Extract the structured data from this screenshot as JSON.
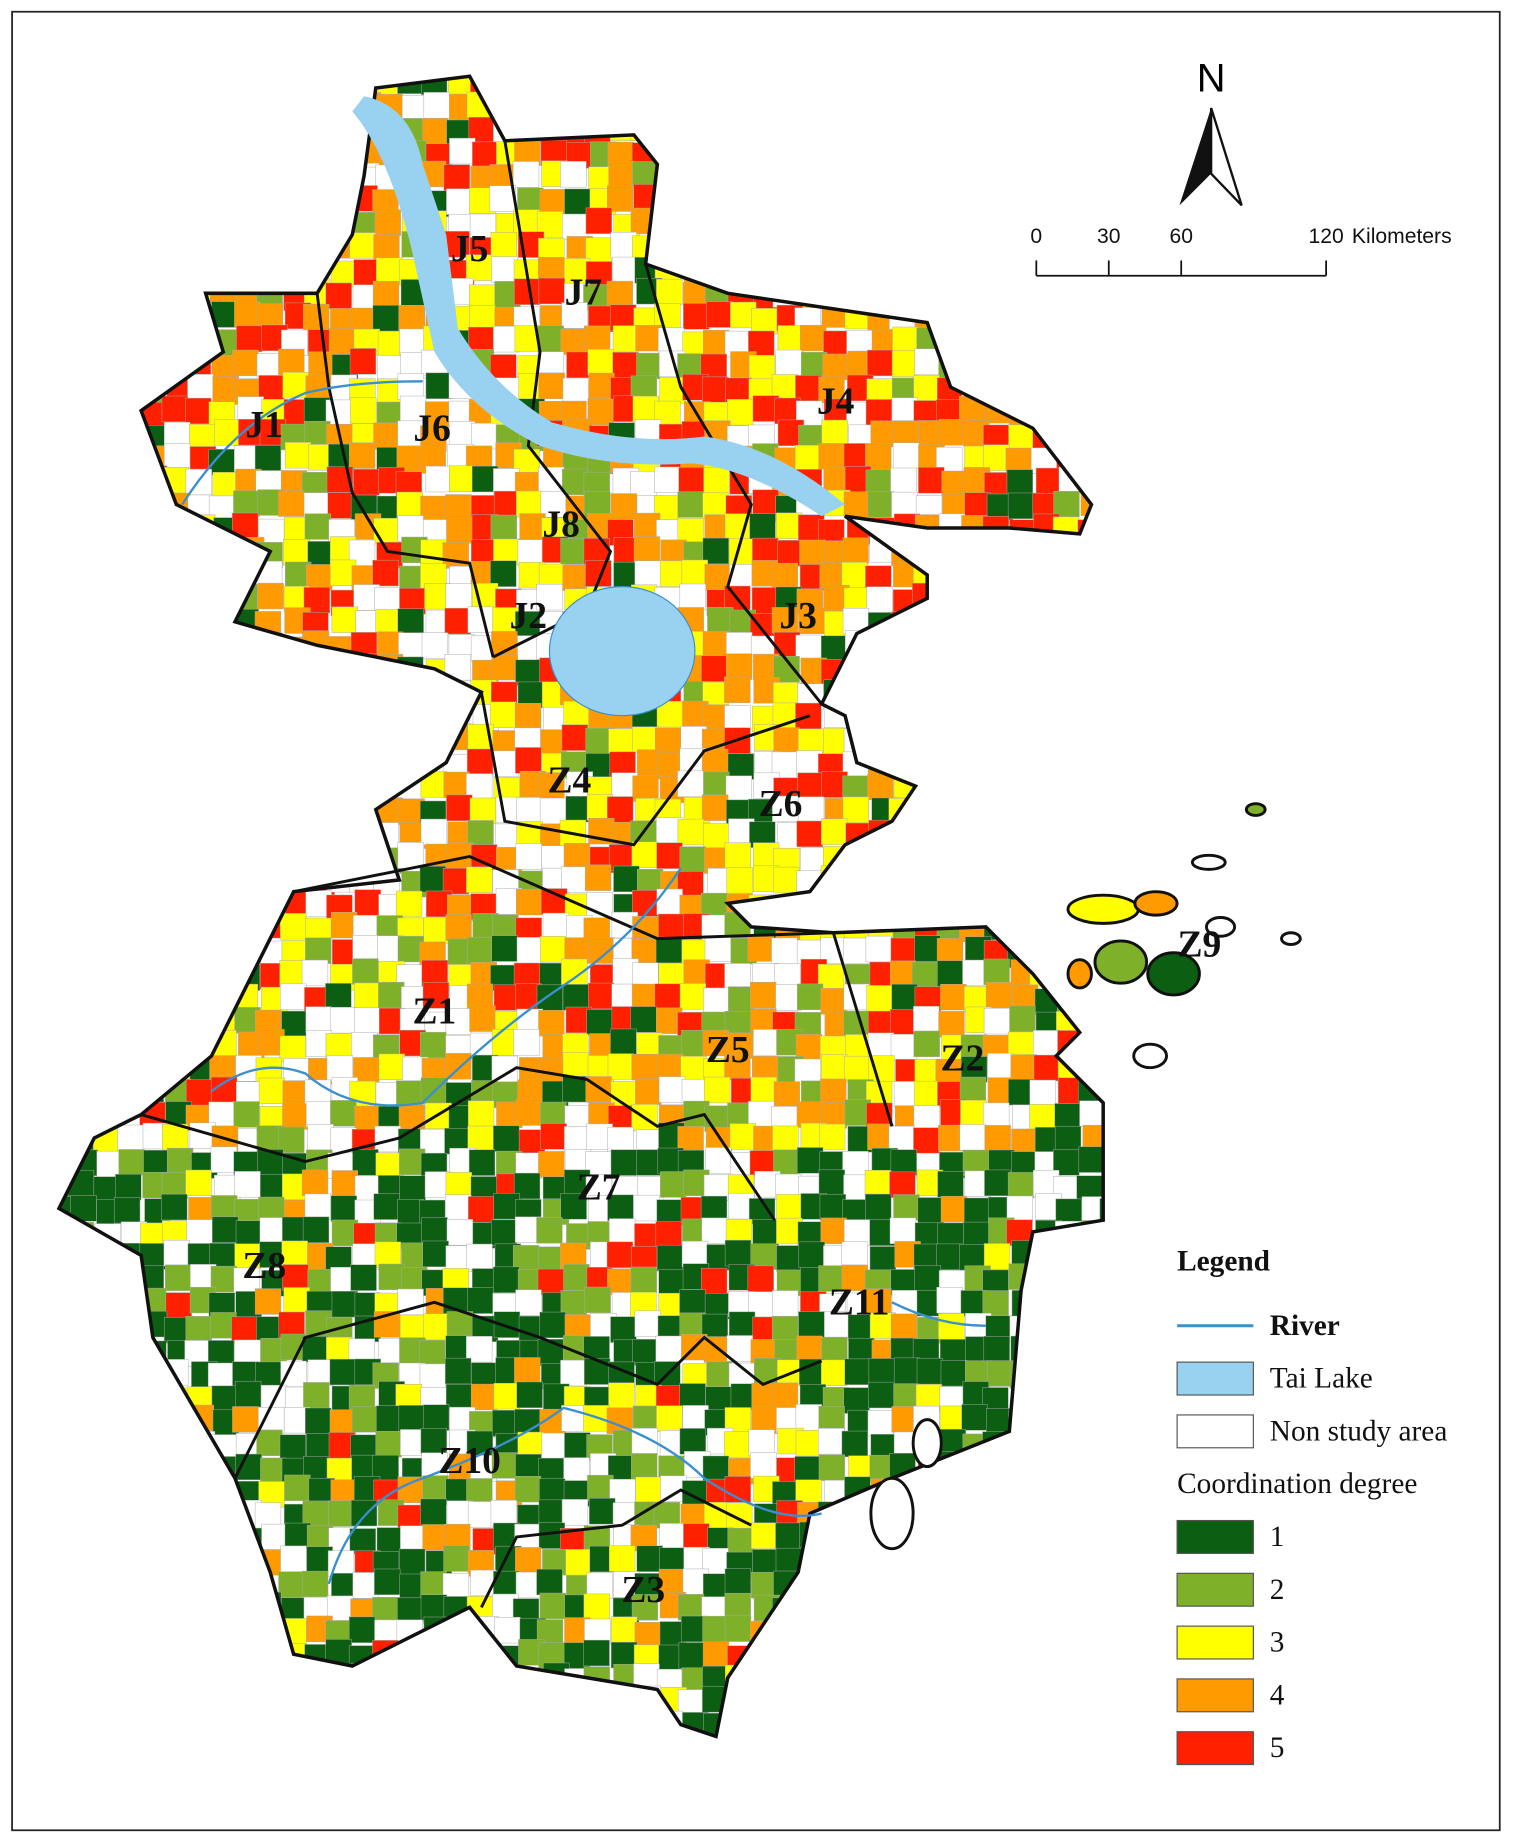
{
  "map": {
    "north": "N",
    "scale_bar": {
      "ticks": [
        0,
        30,
        60,
        120
      ],
      "unit": "Kilometers"
    },
    "regions": [
      "J1",
      "J2",
      "J3",
      "J4",
      "J5",
      "J6",
      "J7",
      "J8",
      "Z1",
      "Z2",
      "Z3",
      "Z4",
      "Z5",
      "Z6",
      "Z7",
      "Z8",
      "Z9",
      "Z10",
      "Z11"
    ],
    "legend": {
      "title": "Legend",
      "river": {
        "label": "River",
        "color": "#3a8fd0"
      },
      "lake": {
        "label": "Tai Lake",
        "color": "#99d1f0"
      },
      "non_study": "Non study area",
      "class_title": "Coordination degree",
      "classes": [
        {
          "label": 1,
          "color": "#0b5e12"
        },
        {
          "label": 2,
          "color": "#7eb02a"
        },
        {
          "label": 3,
          "color": "#ffff00"
        },
        {
          "label": 4,
          "color": "#ff9a00"
        },
        {
          "label": 5,
          "color": "#ff2000"
        }
      ]
    }
  }
}
